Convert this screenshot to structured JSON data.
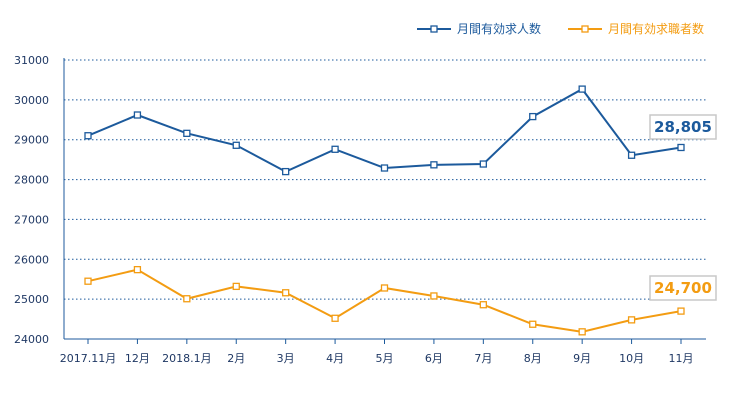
{
  "chart_data": {
    "type": "line",
    "categories": [
      "2017.11月",
      "12月",
      "2018.1月",
      "2月",
      "3月",
      "4月",
      "5月",
      "6月",
      "7月",
      "8月",
      "9月",
      "10月",
      "11月"
    ],
    "series": [
      {
        "name": "月間有効求人数",
        "color": "#1c5a9c",
        "values": [
          29100,
          29620,
          29160,
          28860,
          28200,
          28760,
          28290,
          28370,
          28390,
          29580,
          30270,
          28610,
          28805
        ],
        "callout": "28,805"
      },
      {
        "name": "月間有効求職者数",
        "color": "#f39c12",
        "values": [
          25450,
          25740,
          25010,
          25320,
          25160,
          24520,
          25280,
          25080,
          24860,
          24370,
          24180,
          24480,
          24700
        ],
        "callout": "24,700"
      }
    ],
    "y_ticks": [
      "31000",
      "30000",
      "29000",
      "28000",
      "27000",
      "26000",
      "25000",
      "24000"
    ],
    "ylim": [
      24000,
      31000
    ],
    "grid": true,
    "legend_position": "top-right"
  }
}
